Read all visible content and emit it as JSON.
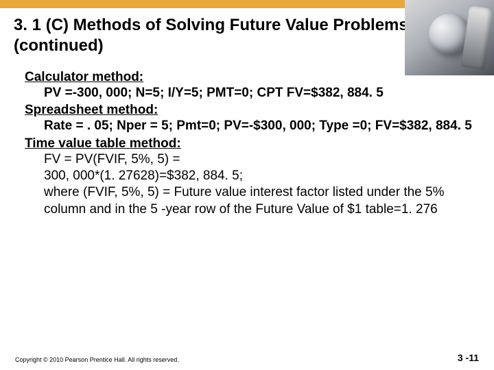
{
  "header": {
    "title": "3. 1 (C)  Methods of Solving Future Value Problems (continued)"
  },
  "methods": {
    "calc": {
      "heading": "Calculator method:",
      "line1": "PV =-300, 000; N=5; I/Y=5; PMT=0; CPT FV=$382, 884. 5"
    },
    "spread": {
      "heading": "Spreadsheet method:",
      "line1": "Rate = . 05; Nper = 5; Pmt=0; PV=-$300, 000; Type =0; FV=$382, 884. 5"
    },
    "tvt": {
      "heading": "Time value table method:",
      "line1": "FV = PV(FVIF, 5%, 5) =",
      "line2": "300, 000*(1. 27628)=$382, 884. 5;",
      "line3": "where (FVIF, 5%, 5) = Future value interest factor listed under the 5% column and in the 5 -year row of the Future Value of $1 table=1. 276"
    }
  },
  "footer": {
    "copyright": "Copyright © 2010 Pearson Prentice Hall. All rights reserved.",
    "page": "3 -11"
  },
  "colors": {
    "accent_bar": "#e8a83a",
    "text": "#000000",
    "background": "#ffffff"
  }
}
